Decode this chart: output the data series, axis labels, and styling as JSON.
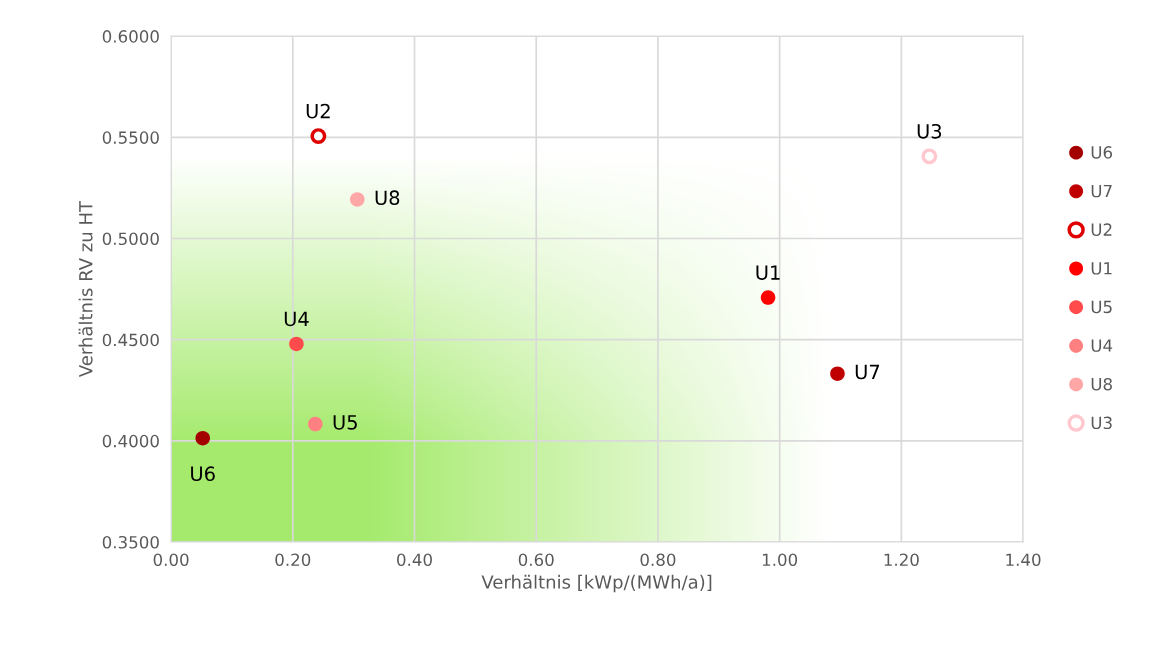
{
  "chart_data": {
    "type": "scatter",
    "xlabel": "Verhältnis [kWp/(MWh/a)]",
    "ylabel": "Verhältnis RV zu HT",
    "xlim": [
      0,
      1.4
    ],
    "xticks": [
      {
        "value": 0,
        "label": "0.00"
      },
      {
        "value": 0.2,
        "label": "0.20"
      },
      {
        "value": 0.4,
        "label": "0.40"
      },
      {
        "value": 0.6,
        "label": "0.60"
      },
      {
        "value": 0.8,
        "label": "0.80"
      },
      {
        "value": 1.0,
        "label": "1.00"
      },
      {
        "value": 1.2,
        "label": "1.20"
      },
      {
        "value": 1.4,
        "label": "1.40"
      }
    ],
    "ylim": [
      0.35,
      0.6
    ],
    "yticks": [
      {
        "value": 0.35,
        "label": "0.3500"
      },
      {
        "value": 0.4,
        "label": "0.4000"
      },
      {
        "value": 0.45,
        "label": "0.4500"
      },
      {
        "value": 0.5,
        "label": "0.5000"
      },
      {
        "value": 0.55,
        "label": "0.5500"
      },
      {
        "value": 0.6,
        "label": "0.6000"
      }
    ],
    "grid": true,
    "legend": "right",
    "marker": "circle",
    "series": [
      {
        "name": "U6",
        "color": "#a50000",
        "x": [
          0.052
        ],
        "values": [
          0.4013
        ]
      },
      {
        "name": "U7",
        "color": "#c00000",
        "x": [
          1.095
        ],
        "values": [
          0.4332
        ]
      },
      {
        "name": "U2",
        "color": "#e00000",
        "colors": [
          "#ffffff"
        ],
        "x": [
          0.242
        ],
        "values": [
          0.5506
        ]
      },
      {
        "name": "U1",
        "color": "#ff0000",
        "x": [
          0.981
        ],
        "values": [
          0.4708
        ]
      },
      {
        "name": "U5",
        "color": "#ff4b4b",
        "x": [
          0.206
        ],
        "values": [
          0.4479
        ]
      },
      {
        "name": "U4",
        "color": "#ff8080",
        "x": [
          0.237
        ],
        "values": [
          0.4083
        ]
      },
      {
        "name": "U8",
        "color": "#ffa7a7",
        "x": [
          0.306
        ],
        "values": [
          0.5193
        ]
      },
      {
        "name": "U3",
        "color": "#ffc7ce",
        "colors": [
          "#ffffff"
        ],
        "x": [
          1.246
        ],
        "values": [
          0.5406
        ]
      }
    ],
    "annotations": [
      {
        "text": "U6",
        "x": 0.052,
        "y": 0.4013
      },
      {
        "text": "U7",
        "x": 1.095,
        "y": 0.4332
      },
      {
        "text": "U2",
        "x": 0.242,
        "y": 0.5506
      },
      {
        "text": "U1",
        "x": 0.981,
        "y": 0.4708
      },
      {
        "text": "U4",
        "x": 0.206,
        "y": 0.4479
      },
      {
        "text": "U5",
        "x": 0.237,
        "y": 0.4083
      },
      {
        "text": "U8",
        "x": 0.306,
        "y": 0.5193
      },
      {
        "text": "U3",
        "x": 1.246,
        "y": 0.5406
      }
    ]
  }
}
